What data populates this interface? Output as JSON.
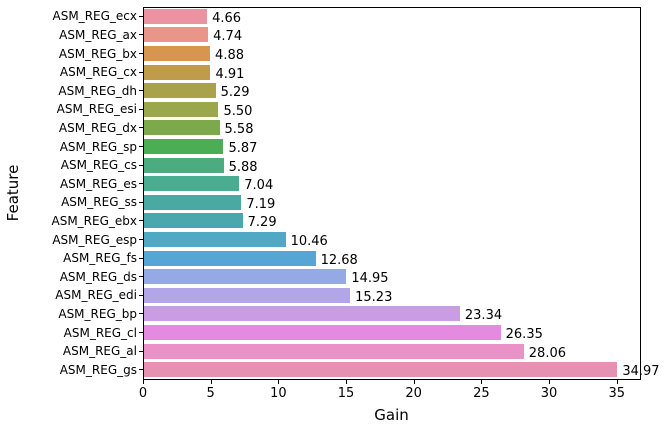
{
  "chart_data": {
    "type": "bar",
    "orientation": "horizontal",
    "title": "",
    "xlabel": "Gain",
    "ylabel": "Feature",
    "categories": [
      "ASM_REG_ecx",
      "ASM_REG_ax",
      "ASM_REG_bx",
      "ASM_REG_cx",
      "ASM_REG_dh",
      "ASM_REG_esi",
      "ASM_REG_dx",
      "ASM_REG_sp",
      "ASM_REG_cs",
      "ASM_REG_es",
      "ASM_REG_ss",
      "ASM_REG_ebx",
      "ASM_REG_esp",
      "ASM_REG_fs",
      "ASM_REG_ds",
      "ASM_REG_edi",
      "ASM_REG_bp",
      "ASM_REG_cl",
      "ASM_REG_al",
      "ASM_REG_gs"
    ],
    "values": [
      4.66,
      4.74,
      4.88,
      4.91,
      5.29,
      5.5,
      5.58,
      5.87,
      5.88,
      7.04,
      7.19,
      7.29,
      10.46,
      12.68,
      14.95,
      15.23,
      23.34,
      26.35,
      28.06,
      34.97
    ],
    "value_labels": [
      "4.66",
      "4.74",
      "4.88",
      "4.91",
      "5.29",
      "5.50",
      "5.58",
      "5.87",
      "5.88",
      "7.04",
      "7.19",
      "7.29",
      "10.46",
      "12.68",
      "14.95",
      "15.23",
      "23.34",
      "26.35",
      "28.06",
      "34.97"
    ],
    "bar_colors": [
      "#ec93a2",
      "#e9958a",
      "#d8954d",
      "#c09c4a",
      "#a9a24a",
      "#9aa84b",
      "#7caa4b",
      "#4bad54",
      "#4cac7f",
      "#49ad92",
      "#4aa9a2",
      "#49a8ad",
      "#4fa8c4",
      "#55a6d5",
      "#95a9e6",
      "#b3a6e8",
      "#c99ce4",
      "#e48ae0",
      "#ea91c8",
      "#e691b1"
    ],
    "xticks": [
      "0",
      "5",
      "10",
      "15",
      "20",
      "25",
      "30",
      "35"
    ],
    "xtick_values": [
      0,
      5,
      10,
      15,
      20,
      25,
      30,
      35
    ],
    "xlim": [
      0,
      36.72
    ],
    "grid": false,
    "legend": "none",
    "background_color": "#ffffff",
    "text_color": "#000000",
    "spine_color": "#000000"
  }
}
